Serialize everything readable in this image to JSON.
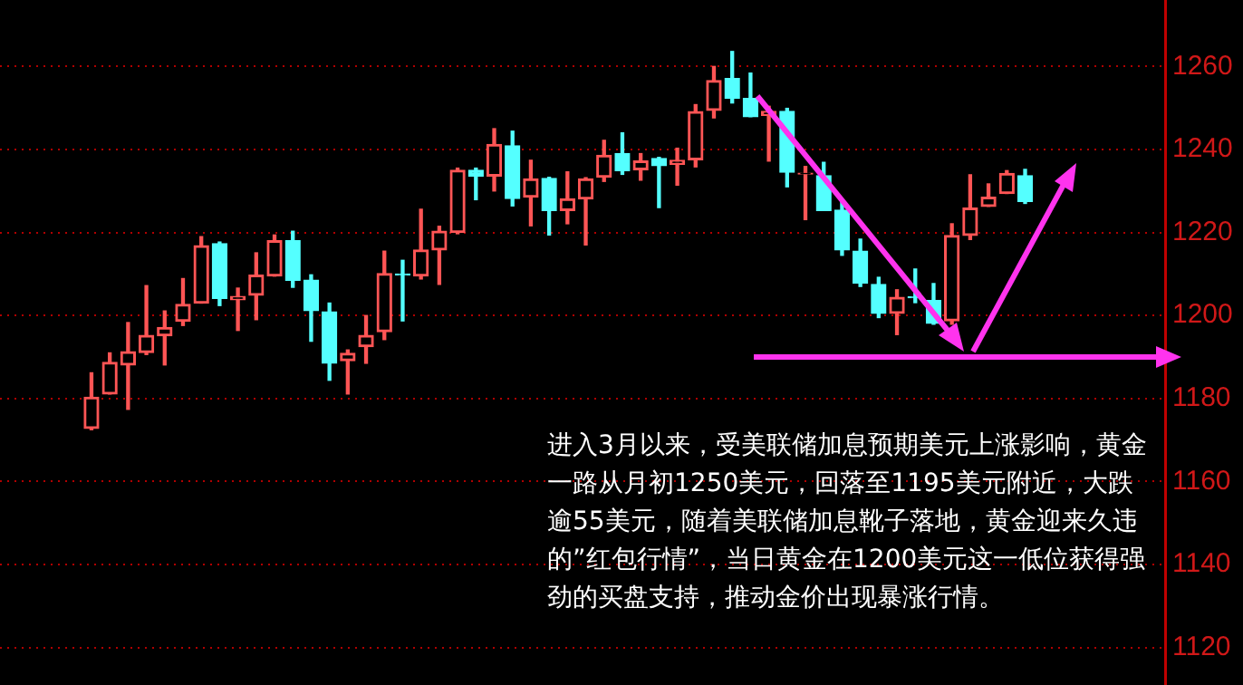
{
  "chart_data": {
    "type": "candlestick",
    "categories": [
      null,
      null,
      null,
      null,
      null,
      null,
      null,
      null,
      null,
      null,
      null,
      null,
      null,
      null,
      null,
      null,
      null,
      null,
      null,
      null,
      null,
      null,
      null,
      null,
      null,
      null,
      null,
      null,
      null,
      null,
      null,
      null,
      null,
      null,
      null,
      null,
      null,
      null,
      null,
      null,
      null,
      null,
      null,
      null,
      null,
      null,
      null,
      null,
      null,
      null,
      null,
      null
    ],
    "ohlc": [
      [
        1172.8,
        1186.2,
        1172.5,
        1180.3
      ],
      [
        1181.1,
        1191.0,
        1181.1,
        1188.7
      ],
      [
        1188.1,
        1198.3,
        1177.4,
        1191.3
      ],
      [
        1191.1,
        1207.2,
        1190.6,
        1195.2
      ],
      [
        1195.1,
        1201.1,
        1188.1,
        1197.1
      ],
      [
        1198.6,
        1208.9,
        1197.6,
        1202.7
      ],
      [
        1203.0,
        1219.0,
        1203.0,
        1216.8
      ],
      [
        1217.3,
        1217.7,
        1202.4,
        1204.1
      ],
      [
        1203.8,
        1206.6,
        1196.4,
        1204.6
      ],
      [
        1204.9,
        1215.1,
        1199.0,
        1209.7
      ],
      [
        1209.5,
        1219.4,
        1209.5,
        1218.0
      ],
      [
        1218.0,
        1220.3,
        1206.8,
        1208.5
      ],
      [
        1208.5,
        1209.8,
        1193.8,
        1201.2
      ],
      [
        1200.9,
        1203.0,
        1184.4,
        1188.5
      ],
      [
        1189.1,
        1191.7,
        1181.1,
        1190.9
      ],
      [
        1192.5,
        1200.0,
        1188.5,
        1195.2
      ],
      [
        1196.1,
        1215.5,
        1194.2,
        1210.1
      ],
      [
        1210.0,
        1213.3,
        1198.7,
        1209.8
      ],
      [
        1209.5,
        1225.6,
        1208.8,
        1215.8
      ],
      [
        1215.8,
        1221.5,
        1207.5,
        1220.3
      ],
      [
        1220.0,
        1235.5,
        1219.7,
        1235.0
      ],
      [
        1235.0,
        1235.5,
        1227.9,
        1233.6
      ],
      [
        1233.6,
        1245.0,
        1230.0,
        1241.2
      ],
      [
        1240.9,
        1244.4,
        1226.4,
        1228.2
      ],
      [
        1228.5,
        1237.4,
        1221.6,
        1232.9
      ],
      [
        1233.0,
        1233.3,
        1219.4,
        1225.3
      ],
      [
        1225.3,
        1234.6,
        1222.1,
        1228.1
      ],
      [
        1228.1,
        1233.2,
        1217.0,
        1232.9
      ],
      [
        1233.3,
        1242.2,
        1232.3,
        1238.6
      ],
      [
        1239.0,
        1244.0,
        1234.0,
        1234.9
      ],
      [
        1235.1,
        1239.0,
        1232.6,
        1237.2
      ],
      [
        1237.8,
        1238.1,
        1226.0,
        1236.1
      ],
      [
        1236.4,
        1240.3,
        1231.4,
        1237.4
      ],
      [
        1237.5,
        1250.8,
        1235.8,
        1249.1
      ],
      [
        1249.4,
        1260.0,
        1247.6,
        1256.6
      ],
      [
        1257.1,
        1263.6,
        1251.2,
        1252.3
      ],
      [
        1252.3,
        1258.4,
        1247.9,
        1247.9
      ],
      [
        1248.2,
        1250.4,
        1237.2,
        1249.2
      ],
      [
        1249.2,
        1249.9,
        1231.0,
        1234.5
      ],
      [
        1234.1,
        1235.9,
        1223.1,
        1234.3
      ],
      [
        1233.7,
        1236.9,
        1225.3,
        1225.3
      ],
      [
        1225.4,
        1227.2,
        1214.5,
        1215.8
      ],
      [
        1215.5,
        1218.4,
        1207.0,
        1207.8
      ],
      [
        1207.5,
        1209.2,
        1199.5,
        1200.5
      ],
      [
        1200.5,
        1206.2,
        1195.4,
        1204.4
      ],
      [
        1204.5,
        1211.2,
        1203.1,
        1204.3
      ],
      [
        1203.6,
        1207.7,
        1197.9,
        1198.1
      ],
      [
        1198.7,
        1222.1,
        1197.9,
        1219.3
      ],
      [
        1219.3,
        1233.9,
        1218.3,
        1225.9
      ],
      [
        1226.3,
        1231.7,
        1226.3,
        1228.5
      ],
      [
        1229.4,
        1234.9,
        1229.4,
        1234.2
      ],
      [
        1233.7,
        1235.2,
        1227.0,
        1227.5
      ]
    ],
    "colors": [
      "#ff5555",
      "#ff5555",
      "#ff5555",
      "#ff5555",
      "#ff5555",
      "#ff5555",
      "#ff5555",
      "#54ffff",
      "#ff5555",
      "#ff5555",
      "#ff5555",
      "#54ffff",
      "#54ffff",
      "#54ffff",
      "#ff5555",
      "#ff5555",
      "#ff5555",
      "#54ffff",
      "#ff5555",
      "#ff5555",
      "#ff5555",
      "#54ffff",
      "#ff5555",
      "#54ffff",
      "#ff5555",
      "#54ffff",
      "#ff5555",
      "#ff5555",
      "#ff5555",
      "#54ffff",
      "#ff5555",
      "#54ffff",
      "#ff5555",
      "#ff5555",
      "#ff5555",
      "#54ffff",
      "#54ffff",
      "#ff5555",
      "#54ffff",
      "#ff5555",
      "#54ffff",
      "#54ffff",
      "#54ffff",
      "#54ffff",
      "#ff5555",
      "#54ffff",
      "#54ffff",
      "#ff5555",
      "#ff5555",
      "#ff5555",
      "#ff5555",
      "#54ffff"
    ],
    "ref_lines": [
      {
        "axis": "y",
        "value": 1190,
        "color": "#ff33ee"
      }
    ],
    "ylim": [
      1111,
      1276
    ],
    "yticks": [
      1120,
      1140,
      1160,
      1180,
      1200,
      1220,
      1240,
      1260
    ],
    "grid": "y",
    "annotations": [
      "进入3月以来，受美联储加息预期美元上涨影响，黄金一路从月初1250美元，回落至1195美元附近，大跌逾55美元，随着美联储加息靴子落地，黄金迎来久违的”红包行情”，当日黄金在1200美元这一低位获得强劲的买盘支持，推动金价出现暴涨行情。"
    ]
  }
}
